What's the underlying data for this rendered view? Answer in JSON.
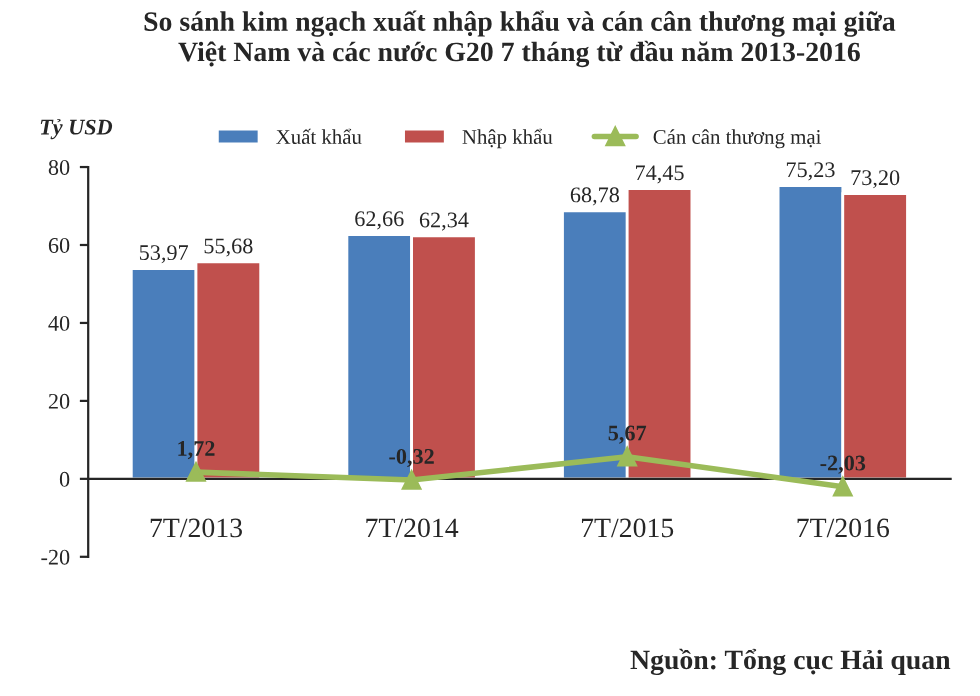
{
  "chart_data": {
    "type": "bar",
    "title": "So sánh kim ngạch xuất nhập khẩu và cán cân thương mại giữa\nViệt Nam và các nước G20 7 tháng từ đầu năm 2013-2016",
    "ylabel": "Tỷ USD",
    "categories": [
      "7T/2013",
      "7T/2014",
      "7T/2015",
      "7T/2016"
    ],
    "series": [
      {
        "name": "Xuất khẩu",
        "color": "#4a7ebb",
        "values": [
          53.97,
          62.66,
          68.78,
          75.23
        ],
        "value_labels": [
          "53,97",
          "62,66",
          "68,78",
          "75,23"
        ]
      },
      {
        "name": "Nhập khẩu",
        "color": "#c0504d",
        "values": [
          55.68,
          62.34,
          74.45,
          73.2
        ],
        "value_labels": [
          "55,68",
          "62,34",
          "74,45",
          "73,20"
        ]
      },
      {
        "name": "Cán cân thương mại",
        "type": "line",
        "color": "#9bbb59",
        "marker": "triangle",
        "values": [
          1.72,
          -0.32,
          5.67,
          -2.03
        ],
        "value_labels": [
          "1,72",
          "-0,32",
          "5,67",
          "-2,03"
        ]
      }
    ],
    "ylim": [
      -20,
      80
    ],
    "yticks": [
      -20,
      0,
      20,
      40,
      60,
      80
    ],
    "grid": false,
    "legend": "top",
    "annotations": [
      "Nguồn: Tổng cục Hải quan"
    ]
  }
}
